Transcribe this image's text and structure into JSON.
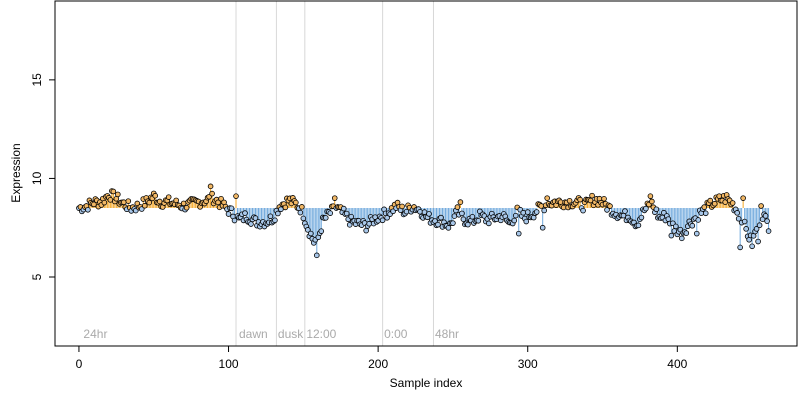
{
  "chart_data": {
    "type": "scatter",
    "title": "",
    "xlabel": "Sample index",
    "ylabel": "Expression",
    "xlim": [
      -16,
      480
    ],
    "ylim": [
      1.5,
      19
    ],
    "xticks": [
      0,
      100,
      200,
      300,
      400
    ],
    "yticks": [
      5,
      10,
      15
    ],
    "baseline": 8.5,
    "grid": false,
    "legend": "none",
    "colors": {
      "above_stem": "#f5a623",
      "below_stem": "#6fa8dc",
      "marker_fill_high": "#f2b866",
      "marker_fill_low": "#a9c8ea",
      "marker_stroke": "#000000",
      "divider": "#d8d8d8",
      "segment_label": "#aaaaaa"
    },
    "segment_labels": [
      {
        "x": 3,
        "label": "24hr"
      },
      {
        "x": 107,
        "label": "dawn"
      },
      {
        "x": 133,
        "label": "dusk"
      },
      {
        "x": 152,
        "label": "12:00"
      },
      {
        "x": 204,
        "label": "0:00"
      },
      {
        "x": 238,
        "label": "48hr"
      }
    ],
    "dividers": [
      105,
      132,
      151,
      203,
      237
    ],
    "series": [
      {
        "anchors": [
          [
            0,
            8.5
          ],
          [
            5,
            8.6
          ],
          [
            10,
            8.8
          ],
          [
            15,
            8.8
          ],
          [
            20,
            9.2
          ],
          [
            25,
            9.0
          ],
          [
            30,
            8.7
          ],
          [
            35,
            8.5
          ],
          [
            40,
            8.6
          ],
          [
            45,
            8.8
          ],
          [
            50,
            9.1
          ],
          [
            55,
            8.8
          ],
          [
            60,
            8.8
          ],
          [
            65,
            8.7
          ],
          [
            70,
            8.6
          ],
          [
            75,
            8.7
          ],
          [
            80,
            8.8
          ],
          [
            85,
            8.9
          ],
          [
            90,
            9.0
          ],
          [
            95,
            8.7
          ],
          [
            100,
            8.4
          ],
          [
            103,
            8.2
          ],
          [
            107,
            7.9
          ],
          [
            112,
            8.1
          ],
          [
            118,
            7.8
          ],
          [
            125,
            7.8
          ],
          [
            130,
            8.0
          ],
          [
            134,
            8.6
          ],
          [
            140,
            8.9
          ],
          [
            145,
            8.7
          ],
          [
            148,
            8.5
          ],
          [
            150,
            8.2
          ],
          [
            153,
            7.5
          ],
          [
            157,
            6.8
          ],
          [
            160,
            7.0
          ],
          [
            163,
            7.8
          ],
          [
            167,
            8.2
          ],
          [
            172,
            8.5
          ],
          [
            177,
            8.2
          ],
          [
            182,
            7.8
          ],
          [
            187,
            7.7
          ],
          [
            192,
            7.6
          ],
          [
            197,
            7.9
          ],
          [
            202,
            8.1
          ],
          [
            207,
            8.3
          ],
          [
            212,
            8.6
          ],
          [
            218,
            8.3
          ],
          [
            223,
            8.6
          ],
          [
            228,
            8.4
          ],
          [
            233,
            8.0
          ],
          [
            238,
            7.9
          ],
          [
            243,
            7.8
          ],
          [
            248,
            7.6
          ],
          [
            253,
            8.3
          ],
          [
            258,
            7.9
          ],
          [
            263,
            7.8
          ],
          [
            268,
            8.1
          ],
          [
            273,
            7.9
          ],
          [
            278,
            8.0
          ],
          [
            283,
            8.1
          ],
          [
            288,
            7.7
          ],
          [
            293,
            8.3
          ],
          [
            298,
            8.0
          ],
          [
            303,
            8.2
          ],
          [
            308,
            8.5
          ],
          [
            313,
            8.7
          ],
          [
            318,
            8.8
          ],
          [
            323,
            8.8
          ],
          [
            328,
            8.8
          ],
          [
            333,
            8.8
          ],
          [
            338,
            8.6
          ],
          [
            343,
            8.9
          ],
          [
            348,
            8.9
          ],
          [
            353,
            8.6
          ],
          [
            358,
            8.3
          ],
          [
            363,
            8.1
          ],
          [
            368,
            8.1
          ],
          [
            373,
            7.7
          ],
          [
            378,
            8.4
          ],
          [
            383,
            8.7
          ],
          [
            388,
            8.0
          ],
          [
            393,
            8.1
          ],
          [
            398,
            7.5
          ],
          [
            403,
            7.2
          ],
          [
            408,
            7.7
          ],
          [
            413,
            8.1
          ],
          [
            418,
            8.4
          ],
          [
            423,
            8.7
          ],
          [
            428,
            8.9
          ],
          [
            433,
            9.0
          ],
          [
            438,
            8.6
          ],
          [
            443,
            7.9
          ],
          [
            447,
            7.2
          ],
          [
            450,
            6.7
          ],
          [
            453,
            7.5
          ],
          [
            457,
            8.2
          ],
          [
            461,
            7.6
          ]
        ],
        "spikes": [
          [
            88,
            9.6
          ],
          [
            159,
            6.1
          ],
          [
            171,
            9.0
          ],
          [
            255,
            8.8
          ],
          [
            294,
            7.2
          ],
          [
            310,
            7.5
          ],
          [
            313,
            9.0
          ],
          [
            382,
            9.1
          ],
          [
            396,
            7.1
          ],
          [
            413,
            7.2
          ],
          [
            442,
            6.5
          ],
          [
            444,
            9.0
          ],
          [
            454,
            6.8
          ],
          [
            456,
            8.6
          ],
          [
            105,
            9.1
          ]
        ]
      }
    ]
  }
}
